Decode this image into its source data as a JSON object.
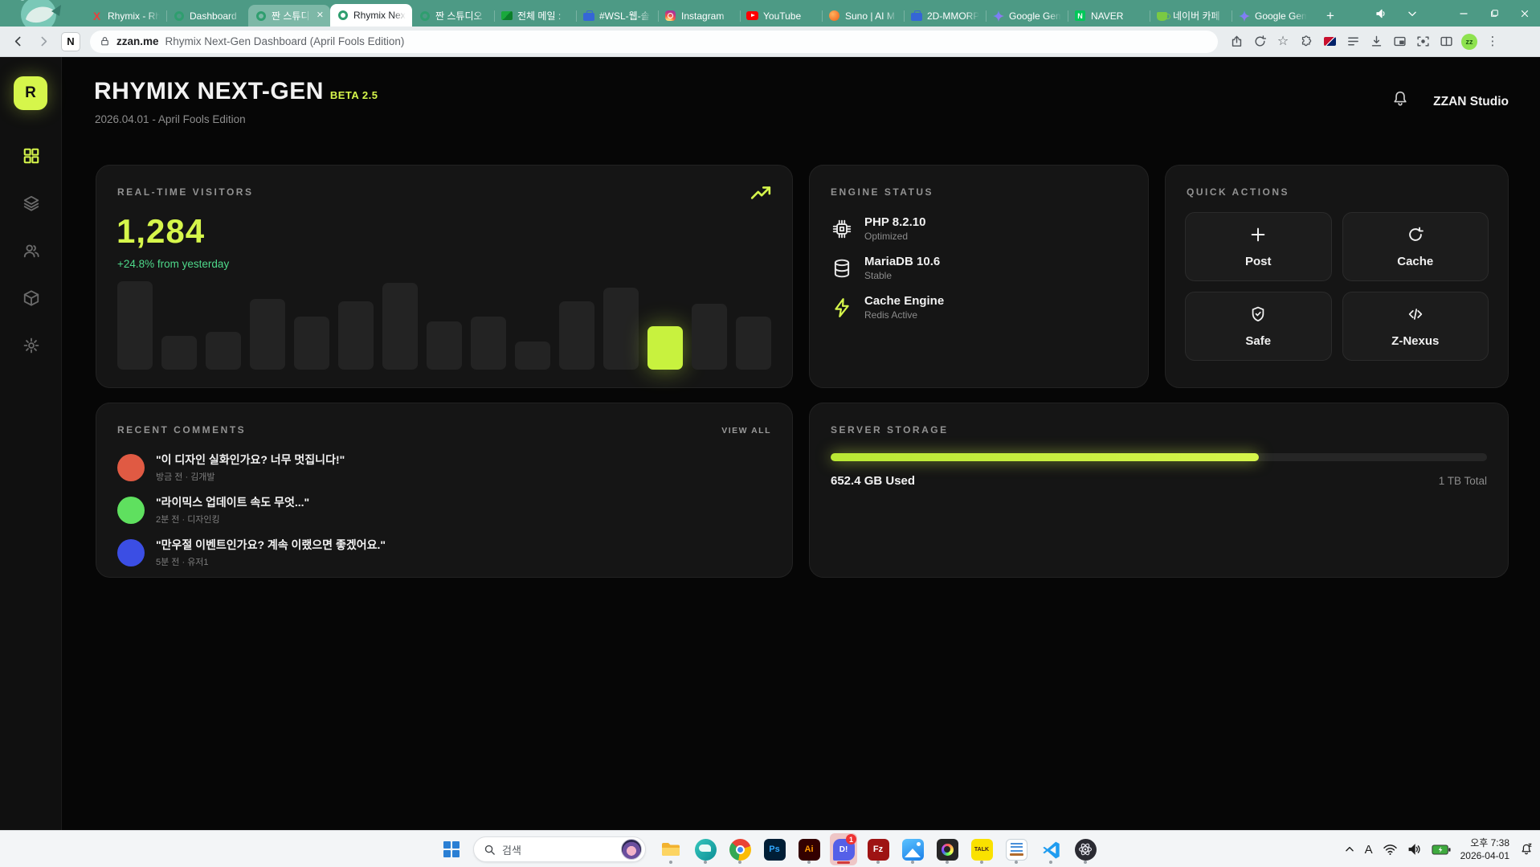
{
  "browser": {
    "tabs": [
      {
        "label": "Rhymix - Rh",
        "icon": "rhymix"
      },
      {
        "label": "Dashboard",
        "icon": "ring"
      },
      {
        "label": "짠 스튜디",
        "icon": "ring",
        "light": true,
        "close": "✕"
      },
      {
        "label": "Rhymix Nex",
        "icon": "ring",
        "active": true
      },
      {
        "label": "짠 스튜디오",
        "icon": "ring"
      },
      {
        "label": "전체 메일 :",
        "icon": "mail"
      },
      {
        "label": "#WSL-웹-솔",
        "icon": "briefcase"
      },
      {
        "label": "Instagram",
        "icon": "instagram"
      },
      {
        "label": "YouTube",
        "icon": "youtube"
      },
      {
        "label": "Suno | AI M",
        "icon": "suno"
      },
      {
        "label": "2D-MMORP",
        "icon": "briefcase"
      },
      {
        "label": "Google Gem",
        "icon": "gemini"
      },
      {
        "label": "NAVER",
        "icon": "naver"
      },
      {
        "label": "네이버 카페",
        "icon": "cafe"
      },
      {
        "label": "Google Gem",
        "icon": "gemini"
      }
    ],
    "new_tab_label": "+",
    "window_controls": [
      "volume",
      "tab-search",
      "minimize",
      "maximize",
      "close"
    ],
    "naver_ext_label": "N",
    "address": {
      "url": "zzan.me",
      "page_title": "Rhymix Next-Gen Dashboard (April Fools Edition)"
    },
    "toolbar_icons": [
      "share",
      "refresh",
      "bookmark",
      "extensions",
      "translate-flag",
      "reading-list",
      "download",
      "pip",
      "screen-capture",
      "split-view",
      "profile",
      "menu"
    ],
    "profile_initials": "zz"
  },
  "app": {
    "logo": "R",
    "title": "RHYMIX NEXT-GEN",
    "badge": "BETA 2.5",
    "subtitle": "2026.04.01 - April Fools Edition",
    "account": "ZZAN Studio",
    "sidebar_items": [
      "dashboard-grid",
      "layers",
      "users",
      "package",
      "settings-gear"
    ],
    "sidebar_active_index": 0
  },
  "cards": {
    "visitors": {
      "title": "REAL-TIME VISITORS",
      "value": "1,284",
      "delta": "+24.8% from yesterday"
    },
    "engine": {
      "title": "ENGINE STATUS",
      "items": [
        {
          "icon": "cpu",
          "name": "PHP 8.2.10",
          "status": "Optimized",
          "lime": false
        },
        {
          "icon": "database",
          "name": "MariaDB 10.6",
          "status": "Stable",
          "lime": false
        },
        {
          "icon": "bolt",
          "name": "Cache Engine",
          "status": "Redis Active",
          "lime": true
        }
      ]
    },
    "actions": {
      "title": "QUICK ACTIONS",
      "buttons": [
        {
          "icon": "plus",
          "label": "Post"
        },
        {
          "icon": "refresh",
          "label": "Cache"
        },
        {
          "icon": "shield",
          "label": "Safe"
        },
        {
          "icon": "code",
          "label": "Z-Nexus"
        }
      ]
    },
    "comments": {
      "title": "RECENT COMMENTS",
      "view_all": "VIEW ALL",
      "items": [
        {
          "color": "#e05a43",
          "text": "\"이 디자인 실화인가요? 너무 멋집니다!\"",
          "meta": "방금 전 · 김개발"
        },
        {
          "color": "#5fe05f",
          "text": "\"라이믹스 업데이트 속도 무엇...\"",
          "meta": "2분 전 · 디자인킹"
        },
        {
          "color": "#3b4ee4",
          "text": "\"만우절 이벤트인가요? 계속 이랬으면 좋겠어요.\"",
          "meta": "5분 전 · 유저1"
        }
      ]
    },
    "storage": {
      "title": "SERVER STORAGE",
      "used": "652.4 GB Used",
      "total": "1 TB Total",
      "percent": 65.2
    }
  },
  "chart_data": {
    "type": "bar",
    "title": "REAL-TIME VISITORS",
    "categories": [
      "h1",
      "h2",
      "h3",
      "h4",
      "h5",
      "h6",
      "h7",
      "h8",
      "h9",
      "h10",
      "h11",
      "h12",
      "h13",
      "h14",
      "h15"
    ],
    "values": [
      100,
      38,
      43,
      80,
      60,
      77,
      98,
      55,
      60,
      32,
      77,
      93,
      49,
      75,
      60
    ],
    "highlight_index": 12,
    "xlabel": "",
    "ylabel": "",
    "ylim": [
      0,
      100
    ],
    "grid": false,
    "legend": "none",
    "colors": {
      "bar": "#232323",
      "highlight": "#c8f23e"
    },
    "note": "axis unlabeled sparkline-style bars; values are relative heights in %"
  },
  "taskbar": {
    "search_placeholder": "검색",
    "apps": [
      {
        "name": "file-explorer",
        "running": true
      },
      {
        "name": "whale-browser",
        "running": true
      },
      {
        "name": "chrome",
        "running": true
      },
      {
        "name": "photoshop",
        "label": "Ps",
        "running": false
      },
      {
        "name": "illustrator",
        "label": "Ai",
        "running": true
      },
      {
        "name": "d-messenger",
        "label": "D!",
        "running": true,
        "active": true,
        "badge": "1"
      },
      {
        "name": "filezilla",
        "label": "Fz",
        "running": true
      },
      {
        "name": "photos",
        "running": true
      },
      {
        "name": "creative-cloud",
        "running": true
      },
      {
        "name": "kakaotalk",
        "label": "TALK",
        "running": true
      },
      {
        "name": "notes",
        "running": true
      },
      {
        "name": "vscode",
        "running": true
      },
      {
        "name": "atom-app",
        "running": true
      }
    ],
    "tray": {
      "ime": "A",
      "time": "오후 7:38",
      "date": "2026-04-01"
    }
  }
}
